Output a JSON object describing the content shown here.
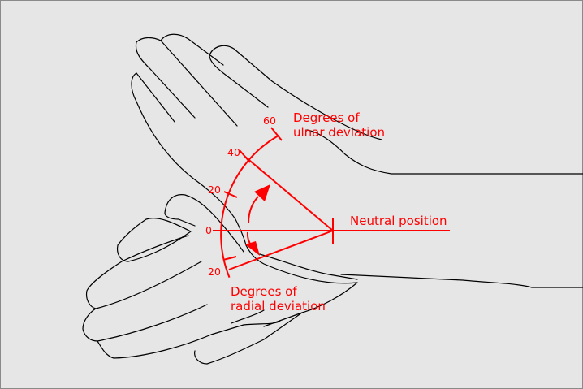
{
  "colors": {
    "accent": "#ff0000",
    "background": "#e6e6e6",
    "outline": "#000000"
  },
  "labels": {
    "neutral": "Neutral position",
    "ulnar_line1": "Degrees of",
    "ulnar_line2": "ulnar deviation",
    "radial_line1": "Degrees of",
    "radial_line2": "radial deviation"
  },
  "scale": {
    "ticks": [
      "60",
      "40",
      "20",
      "0",
      "20"
    ]
  }
}
